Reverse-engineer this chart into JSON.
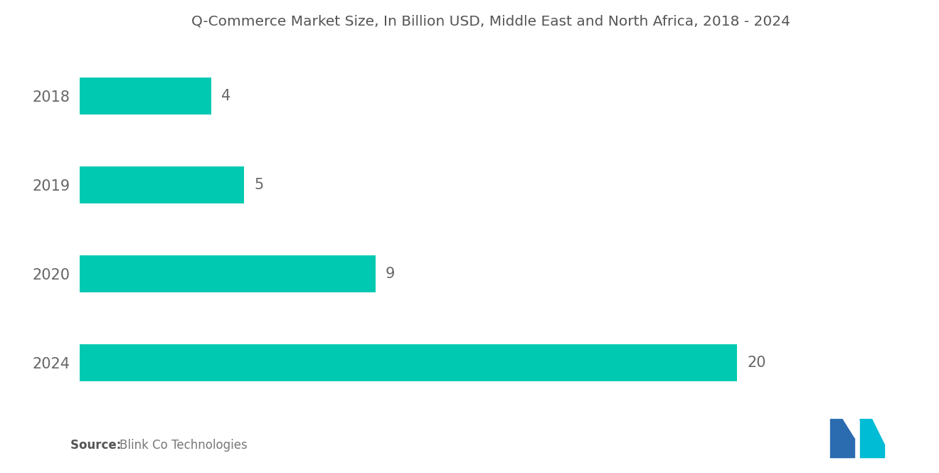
{
  "title": "Q-Commerce Market Size, In Billion USD, Middle East and North Africa, 2018 - 2024",
  "categories": [
    "2018",
    "2019",
    "2020",
    "2024"
  ],
  "values": [
    4,
    5,
    9,
    20
  ],
  "bar_color": "#00C9B1",
  "label_color": "#666666",
  "title_color": "#555555",
  "background_color": "#ffffff",
  "source_bold": "Source: ",
  "source_normal": "Blink Co Technologies",
  "title_fontsize": 14.5,
  "label_fontsize": 15,
  "ytick_fontsize": 15,
  "source_fontsize": 12,
  "bar_height": 0.42,
  "xlim": [
    0,
    25
  ],
  "logo_m_color": "#2B6CB0",
  "logo_n_color": "#00BCD4"
}
